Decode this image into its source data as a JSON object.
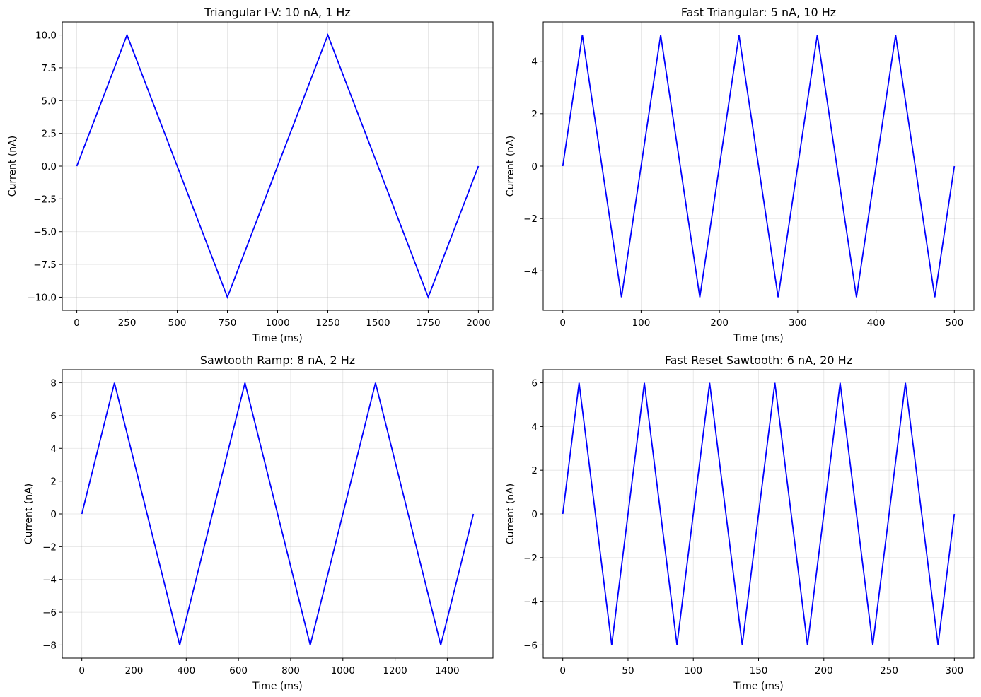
{
  "chart_data": [
    {
      "type": "line",
      "title": "Triangular I-V: 10 nA, 1 Hz",
      "xlabel": "Time (ms)",
      "ylabel": "Current (nA)",
      "xlim": [
        -72.5,
        2072.5
      ],
      "ylim": [
        -11,
        11
      ],
      "xticks": [
        0,
        250,
        500,
        750,
        1000,
        1250,
        1500,
        1750,
        2000
      ],
      "xtick_labels": [
        "0",
        "250",
        "500",
        "750",
        "1000",
        "1250",
        "1500",
        "1750",
        "2000"
      ],
      "yticks": [
        -10,
        -7.5,
        -5,
        -2.5,
        0,
        2.5,
        5,
        7.5,
        10
      ],
      "ytick_labels": [
        "−10.0",
        "−7.5",
        "−5.0",
        "−2.5",
        "0.0",
        "2.5",
        "5.0",
        "7.5",
        "10.0"
      ],
      "grid": true,
      "color": "#0000ff",
      "series": [
        {
          "x": [
            0,
            250,
            750,
            1250,
            1750,
            2000
          ],
          "y": [
            0,
            10,
            -10,
            10,
            -10,
            0
          ]
        }
      ]
    },
    {
      "type": "line",
      "title": "Fast Triangular: 5 nA, 10 Hz",
      "xlabel": "Time (ms)",
      "ylabel": "Current (nA)",
      "xlim": [
        -25,
        525
      ],
      "ylim": [
        -5.5,
        5.5
      ],
      "xticks": [
        0,
        100,
        200,
        300,
        400,
        500
      ],
      "xtick_labels": [
        "0",
        "100",
        "200",
        "300",
        "400",
        "500"
      ],
      "yticks": [
        -4,
        -2,
        0,
        2,
        4
      ],
      "ytick_labels": [
        "−4",
        "−2",
        "0",
        "2",
        "4"
      ],
      "grid": true,
      "color": "#0000ff",
      "series": [
        {
          "x": [
            0,
            25,
            75,
            125,
            175,
            225,
            275,
            325,
            375,
            425,
            475,
            500
          ],
          "y": [
            0,
            5,
            -5,
            5,
            -5,
            5,
            -5,
            5,
            -5,
            5,
            -5,
            0
          ]
        }
      ]
    },
    {
      "type": "line",
      "title": "Sawtooth Ramp: 8 nA, 2 Hz",
      "xlabel": "Time (ms)",
      "ylabel": "Current (nA)",
      "xlim": [
        -75,
        1575
      ],
      "ylim": [
        -8.8,
        8.8
      ],
      "xticks": [
        0,
        200,
        400,
        600,
        800,
        1000,
        1200,
        1400
      ],
      "xtick_labels": [
        "0",
        "200",
        "400",
        "600",
        "800",
        "1000",
        "1200",
        "1400"
      ],
      "yticks": [
        -8,
        -6,
        -4,
        -2,
        0,
        2,
        4,
        6,
        8
      ],
      "ytick_labels": [
        "−8",
        "−6",
        "−4",
        "−2",
        "0",
        "2",
        "4",
        "6",
        "8"
      ],
      "grid": true,
      "color": "#0000ff",
      "series": [
        {
          "x": [
            0,
            125,
            375,
            625,
            875,
            1125,
            1375,
            1500
          ],
          "y": [
            0,
            8,
            -8,
            8,
            -8,
            8,
            -8,
            0
          ]
        }
      ]
    },
    {
      "type": "line",
      "title": "Fast Reset Sawtooth: 6 nA, 20 Hz",
      "xlabel": "Time (ms)",
      "ylabel": "Current (nA)",
      "xlim": [
        -15,
        315
      ],
      "ylim": [
        -6.6,
        6.6
      ],
      "xticks": [
        0,
        50,
        100,
        150,
        200,
        250,
        300
      ],
      "xtick_labels": [
        "0",
        "50",
        "100",
        "150",
        "200",
        "250",
        "300"
      ],
      "yticks": [
        -6,
        -4,
        -2,
        0,
        2,
        4,
        6
      ],
      "ytick_labels": [
        "−6",
        "−4",
        "−2",
        "0",
        "2",
        "4",
        "6"
      ],
      "grid": true,
      "color": "#0000ff",
      "series": [
        {
          "x": [
            0,
            12.5,
            37.5,
            62.5,
            87.5,
            112.5,
            137.5,
            162.5,
            187.5,
            212.5,
            237.5,
            262.5,
            287.5,
            300
          ],
          "y": [
            0,
            6,
            -6,
            6,
            -6,
            6,
            -6,
            6,
            -6,
            6,
            -6,
            6,
            -6,
            0
          ]
        }
      ]
    }
  ]
}
